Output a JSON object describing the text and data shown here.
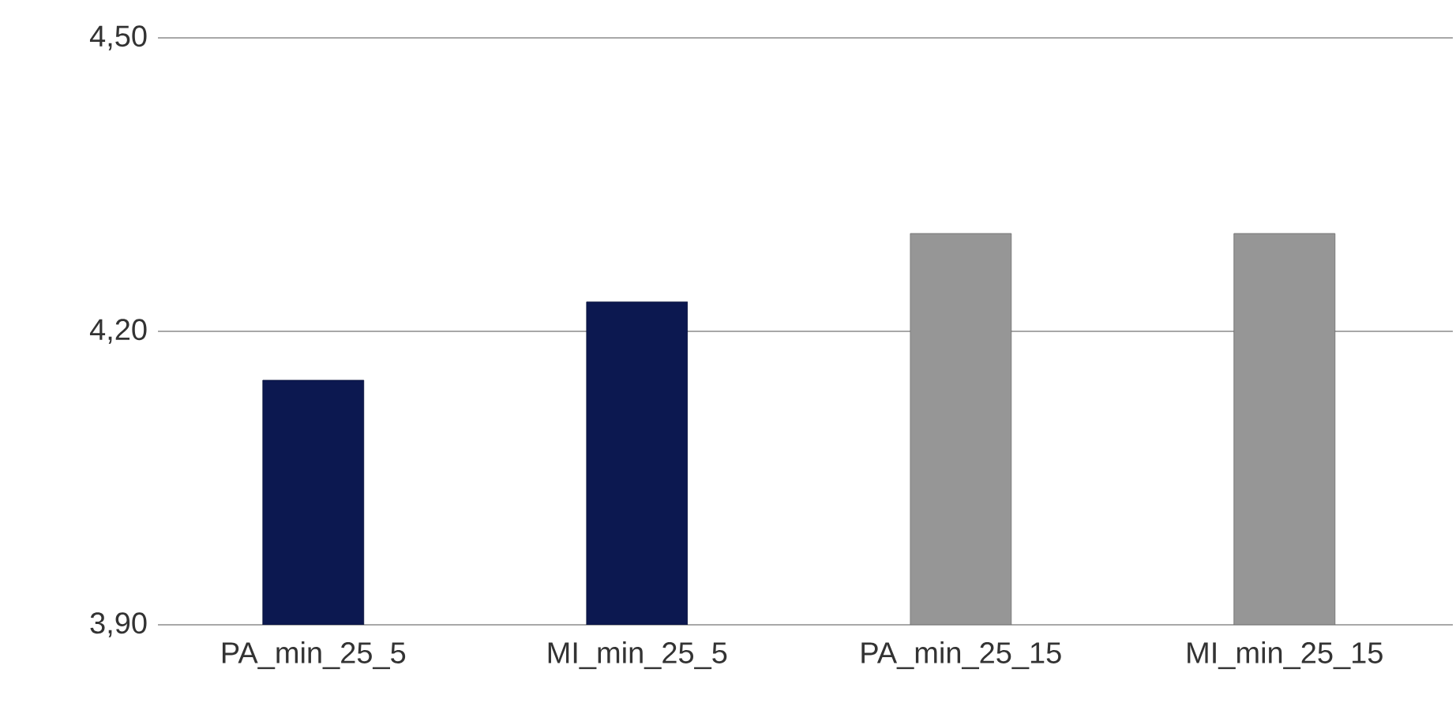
{
  "chart_data": {
    "type": "bar",
    "categories": [
      "PA_min_25_5",
      "MI_min_25_5",
      "PA_min_25_15",
      "MI_min_25_15"
    ],
    "values": [
      4.15,
      4.23,
      4.3,
      4.3
    ],
    "colors": [
      "#0c1850",
      "#0c1850",
      "#969696",
      "#969696"
    ],
    "ylim": [
      3.9,
      4.5
    ],
    "yticks": [
      {
        "value": 3.9,
        "label": "3,90"
      },
      {
        "value": 4.2,
        "label": "4,20"
      },
      {
        "value": 4.5,
        "label": "4,50"
      }
    ],
    "grid": "y"
  }
}
